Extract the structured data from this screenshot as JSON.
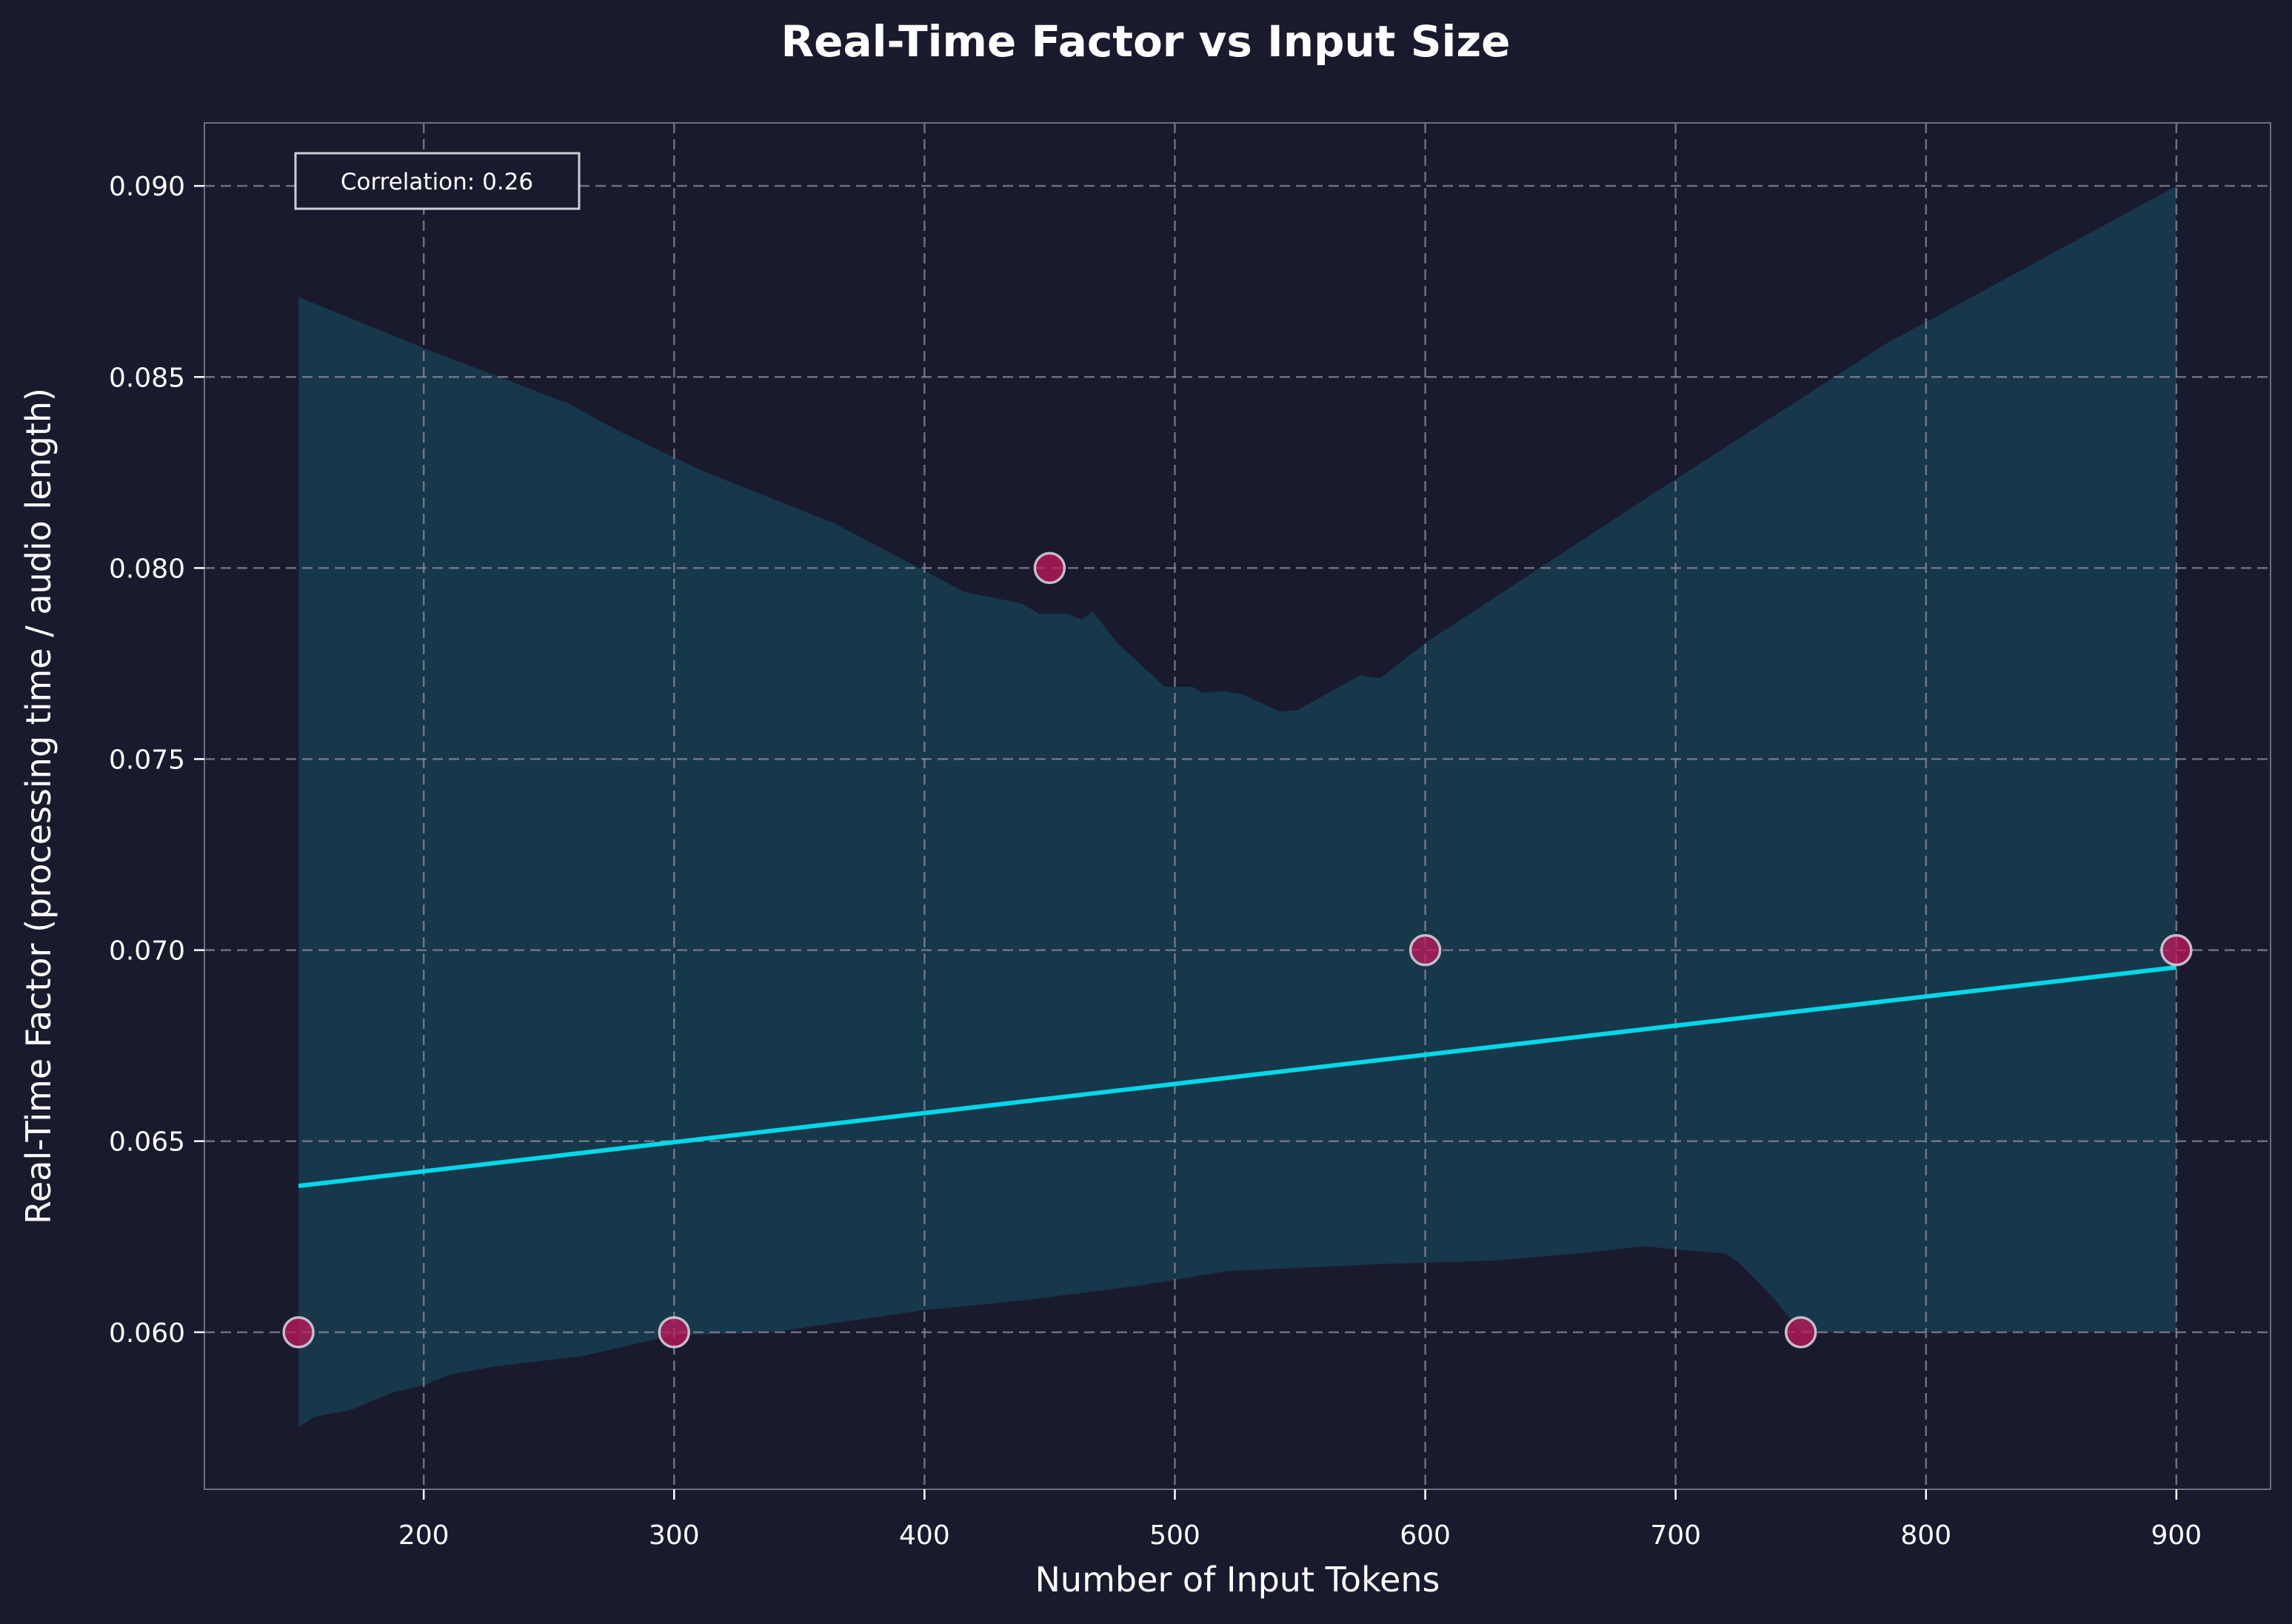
{
  "chart_data": {
    "type": "scatter",
    "title": "Real-Time Factor vs Input Size",
    "xlabel": "Number of Input Tokens",
    "ylabel": "Real-Time Factor (processing time / audio length)",
    "xlim": [
      112.4,
      937.6
    ],
    "ylim": [
      0.05589,
      0.09165
    ],
    "xticks": [
      200,
      300,
      400,
      500,
      600,
      700,
      800,
      900
    ],
    "yticks": [
      "0.060",
      "0.065",
      "0.070",
      "0.075",
      "0.080",
      "0.085",
      "0.090"
    ],
    "grid": true,
    "points": {
      "x": [
        150,
        300,
        450,
        600,
        750,
        900
      ],
      "y": [
        0.06,
        0.06,
        0.08,
        0.07,
        0.06,
        0.07
      ]
    },
    "regression_line": {
      "x": [
        150,
        900
      ],
      "y": [
        0.06383,
        0.06955
      ]
    },
    "confidence_band": {
      "upper": [
        [
          150,
          0.08709
        ],
        [
          200,
          0.08576
        ],
        [
          258,
          0.0843
        ],
        [
          276,
          0.08365
        ],
        [
          311,
          0.08255
        ],
        [
          364,
          0.08117
        ],
        [
          404,
          0.07979
        ],
        [
          416,
          0.07937
        ],
        [
          439,
          0.07907
        ],
        [
          446,
          0.0788
        ],
        [
          457,
          0.0788
        ],
        [
          463,
          0.07865
        ],
        [
          467,
          0.07888
        ],
        [
          477,
          0.07804
        ],
        [
          496,
          0.07689
        ],
        [
          507,
          0.07689
        ],
        [
          511,
          0.07674
        ],
        [
          520,
          0.07677
        ],
        [
          527,
          0.0767
        ],
        [
          542,
          0.07624
        ],
        [
          549,
          0.07628
        ],
        [
          556,
          0.07654
        ],
        [
          574,
          0.07719
        ],
        [
          582,
          0.07712
        ],
        [
          600,
          0.07804
        ],
        [
          690,
          0.0819
        ],
        [
          784,
          0.08587
        ],
        [
          900,
          0.09
        ]
      ],
      "lower": [
        [
          150,
          0.05751
        ],
        [
          156,
          0.05778
        ],
        [
          171,
          0.05797
        ],
        [
          188,
          0.05843
        ],
        [
          200,
          0.05862
        ],
        [
          212,
          0.05892
        ],
        [
          229,
          0.05911
        ],
        [
          264,
          0.05938
        ],
        [
          299,
          0.05992
        ],
        [
          340,
          0.06
        ],
        [
          358,
          0.06018
        ],
        [
          399,
          0.06057
        ],
        [
          439,
          0.06083
        ],
        [
          486,
          0.06122
        ],
        [
          521,
          0.0616
        ],
        [
          585,
          0.06179
        ],
        [
          626,
          0.06187
        ],
        [
          661,
          0.06206
        ],
        [
          687,
          0.06225
        ],
        [
          720,
          0.06206
        ],
        [
          725,
          0.06183
        ],
        [
          740,
          0.06083
        ],
        [
          750,
          0.06
        ],
        [
          900,
          0.06
        ]
      ]
    },
    "annotation": "Correlation: 0.26",
    "colors": {
      "background": "#1a1a2e",
      "band": "#17374a",
      "line": "#00d8e8",
      "point": "#c2185b",
      "point_edge": "#d8d8e0",
      "grid": "#8a8a9a"
    }
  }
}
